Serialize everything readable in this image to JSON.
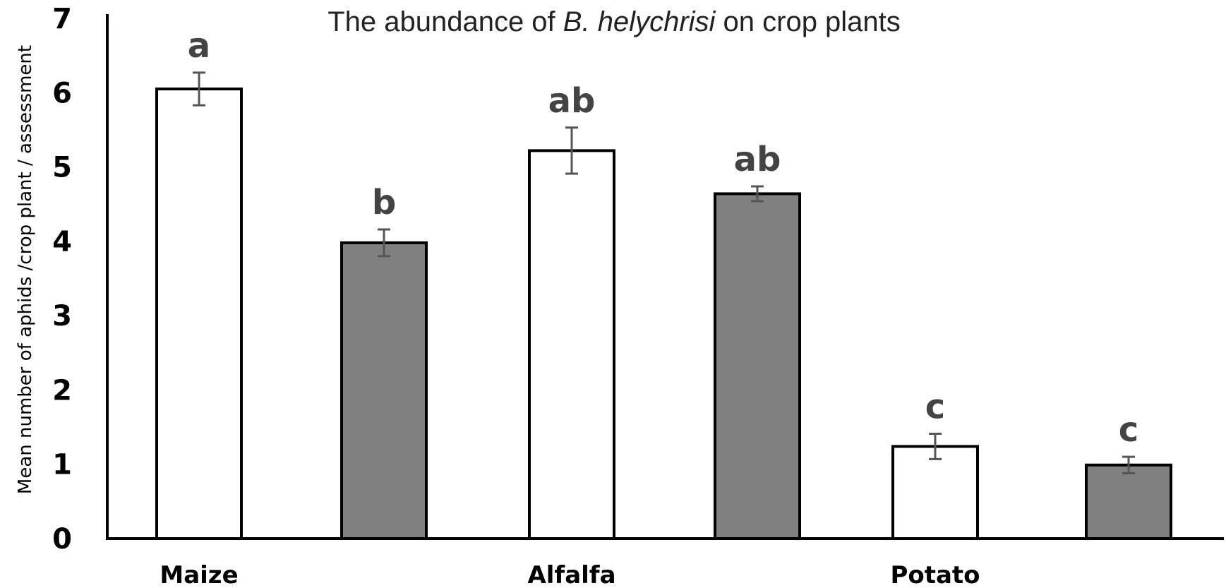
{
  "chart_data": {
    "type": "bar",
    "title_parts": [
      {
        "text": "The abundance of ",
        "italic": false
      },
      {
        "text": "B. helychrisi",
        "italic": true
      },
      {
        "text": " on crop plants",
        "italic": false
      }
    ],
    "ylabel": "Mean number of aphids /crop plant / assessment",
    "xlabel": "",
    "ylim": [
      0,
      7
    ],
    "yticks": [
      0,
      1,
      2,
      3,
      4,
      5,
      6,
      7
    ],
    "categories": [
      "Maize",
      "Alfalfa",
      "Potato"
    ],
    "bars": [
      {
        "category": "Maize",
        "value": 6.05,
        "error": 0.22,
        "letter": "a",
        "fill": "#ffffff"
      },
      {
        "category": "Maize",
        "value": 3.98,
        "error": 0.18,
        "letter": "b",
        "fill": "#808080"
      },
      {
        "category": "Alfalfa",
        "value": 5.22,
        "error": 0.31,
        "letter": "ab",
        "fill": "#ffffff"
      },
      {
        "category": "Alfalfa",
        "value": 4.64,
        "error": 0.1,
        "letter": "ab",
        "fill": "#808080"
      },
      {
        "category": "Potato",
        "value": 1.24,
        "error": 0.17,
        "letter": "c",
        "fill": "#ffffff"
      },
      {
        "category": "Potato",
        "value": 0.99,
        "error": 0.11,
        "letter": "c",
        "fill": "#808080"
      }
    ],
    "grid": false,
    "legend": "none",
    "colors": {
      "axis": "#000000",
      "bar_outline": "#000000",
      "error_bar": "#555555",
      "letters": "#444444"
    }
  }
}
